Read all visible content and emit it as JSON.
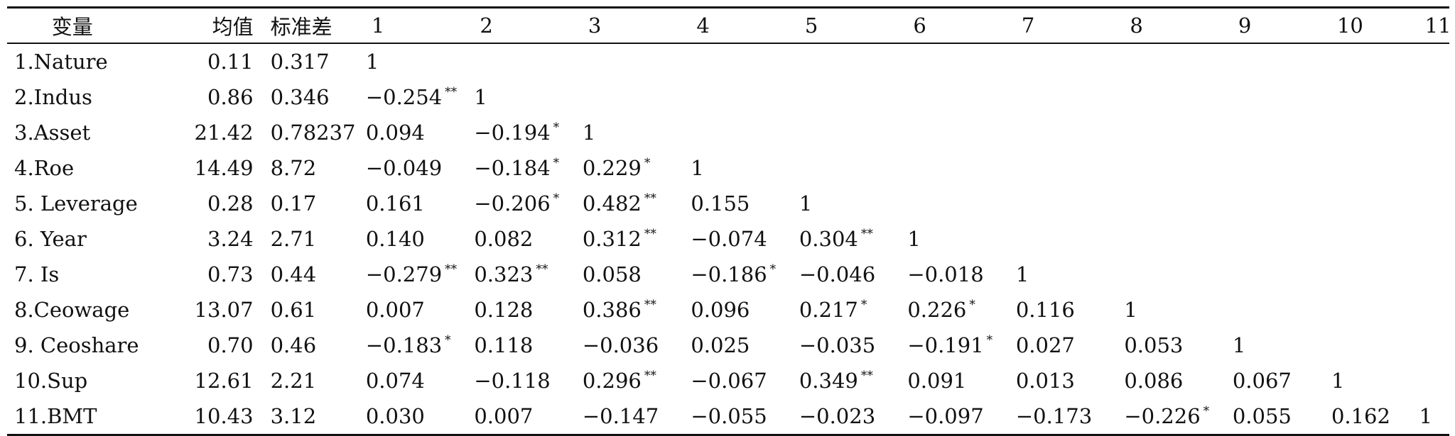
{
  "table": {
    "headers": [
      "变量",
      "均值",
      "标准差",
      "1",
      "2",
      "3",
      "4",
      "5",
      "6",
      "7",
      "8",
      "9",
      "10",
      "11"
    ],
    "rows": [
      {
        "variable": "1.Nature",
        "mean": "0.11",
        "sd": "0.317",
        "cells": [
          {
            "v": "1",
            "s": ""
          }
        ]
      },
      {
        "variable": "2.Indus",
        "mean": "0.86",
        "sd": "0.346",
        "cells": [
          {
            "v": "−0.254",
            "s": "**"
          },
          {
            "v": "1",
            "s": ""
          }
        ]
      },
      {
        "variable": "3.Asset",
        "mean": "21.42",
        "sd": "0.78237",
        "cells": [
          {
            "v": "0.094",
            "s": ""
          },
          {
            "v": "−0.194",
            "s": "*"
          },
          {
            "v": "1",
            "s": ""
          }
        ]
      },
      {
        "variable": "4.Roe",
        "mean": "14.49",
        "sd": "8.72",
        "cells": [
          {
            "v": "−0.049",
            "s": ""
          },
          {
            "v": "−0.184",
            "s": "*"
          },
          {
            "v": "0.229",
            "s": "*"
          },
          {
            "v": "1",
            "s": ""
          }
        ]
      },
      {
        "variable": "5. Leverage",
        "mean": "0.28",
        "sd": "0.17",
        "cells": [
          {
            "v": "0.161",
            "s": ""
          },
          {
            "v": "−0.206",
            "s": "*"
          },
          {
            "v": "0.482",
            "s": "**"
          },
          {
            "v": "0.155",
            "s": ""
          },
          {
            "v": "1",
            "s": ""
          }
        ]
      },
      {
        "variable": "6. Year",
        "mean": "3.24",
        "sd": "2.71",
        "cells": [
          {
            "v": "0.140",
            "s": ""
          },
          {
            "v": "0.082",
            "s": ""
          },
          {
            "v": "0.312",
            "s": "**"
          },
          {
            "v": "−0.074",
            "s": ""
          },
          {
            "v": "0.304",
            "s": "**"
          },
          {
            "v": "1",
            "s": ""
          }
        ]
      },
      {
        "variable": "7. Is",
        "mean": "0.73",
        "sd": "0.44",
        "cells": [
          {
            "v": "−0.279",
            "s": "**"
          },
          {
            "v": "0.323",
            "s": "**"
          },
          {
            "v": "0.058",
            "s": ""
          },
          {
            "v": "−0.186",
            "s": "*"
          },
          {
            "v": "−0.046",
            "s": ""
          },
          {
            "v": "−0.018",
            "s": ""
          },
          {
            "v": "1",
            "s": ""
          }
        ]
      },
      {
        "variable": "8.Ceowage",
        "mean": "13.07",
        "sd": "0.61",
        "cells": [
          {
            "v": "0.007",
            "s": ""
          },
          {
            "v": "0.128",
            "s": ""
          },
          {
            "v": "0.386",
            "s": "**"
          },
          {
            "v": "0.096",
            "s": ""
          },
          {
            "v": "0.217",
            "s": "*"
          },
          {
            "v": "0.226",
            "s": "*"
          },
          {
            "v": "0.116",
            "s": ""
          },
          {
            "v": "1",
            "s": ""
          }
        ]
      },
      {
        "variable": "9. Ceoshare",
        "mean": "0.70",
        "sd": "0.46",
        "cells": [
          {
            "v": "−0.183",
            "s": "*"
          },
          {
            "v": "0.118",
            "s": ""
          },
          {
            "v": "−0.036",
            "s": ""
          },
          {
            "v": "0.025",
            "s": ""
          },
          {
            "v": "−0.035",
            "s": ""
          },
          {
            "v": "−0.191",
            "s": "*"
          },
          {
            "v": "0.027",
            "s": ""
          },
          {
            "v": "0.053",
            "s": ""
          },
          {
            "v": "1",
            "s": ""
          }
        ]
      },
      {
        "variable": "10.Sup",
        "mean": "12.61",
        "sd": "2.21",
        "cells": [
          {
            "v": "0.074",
            "s": ""
          },
          {
            "v": "−0.118",
            "s": ""
          },
          {
            "v": "0.296",
            "s": "**"
          },
          {
            "v": "−0.067",
            "s": ""
          },
          {
            "v": "0.349",
            "s": "**"
          },
          {
            "v": "0.091",
            "s": ""
          },
          {
            "v": "0.013",
            "s": ""
          },
          {
            "v": "0.086",
            "s": ""
          },
          {
            "v": "0.067",
            "s": ""
          },
          {
            "v": "1",
            "s": ""
          }
        ]
      },
      {
        "variable": "11.BMT",
        "mean": "10.43",
        "sd": "3.12",
        "cells": [
          {
            "v": "0.030",
            "s": ""
          },
          {
            "v": "0.007",
            "s": ""
          },
          {
            "v": "−0.147",
            "s": ""
          },
          {
            "v": "−0.055",
            "s": ""
          },
          {
            "v": "−0.023",
            "s": ""
          },
          {
            "v": "−0.097",
            "s": ""
          },
          {
            "v": "−0.173",
            "s": ""
          },
          {
            "v": "−0.226",
            "s": "*"
          },
          {
            "v": "0.055",
            "s": ""
          },
          {
            "v": "0.162",
            "s": ""
          },
          {
            "v": "1",
            "s": ""
          }
        ]
      }
    ]
  }
}
